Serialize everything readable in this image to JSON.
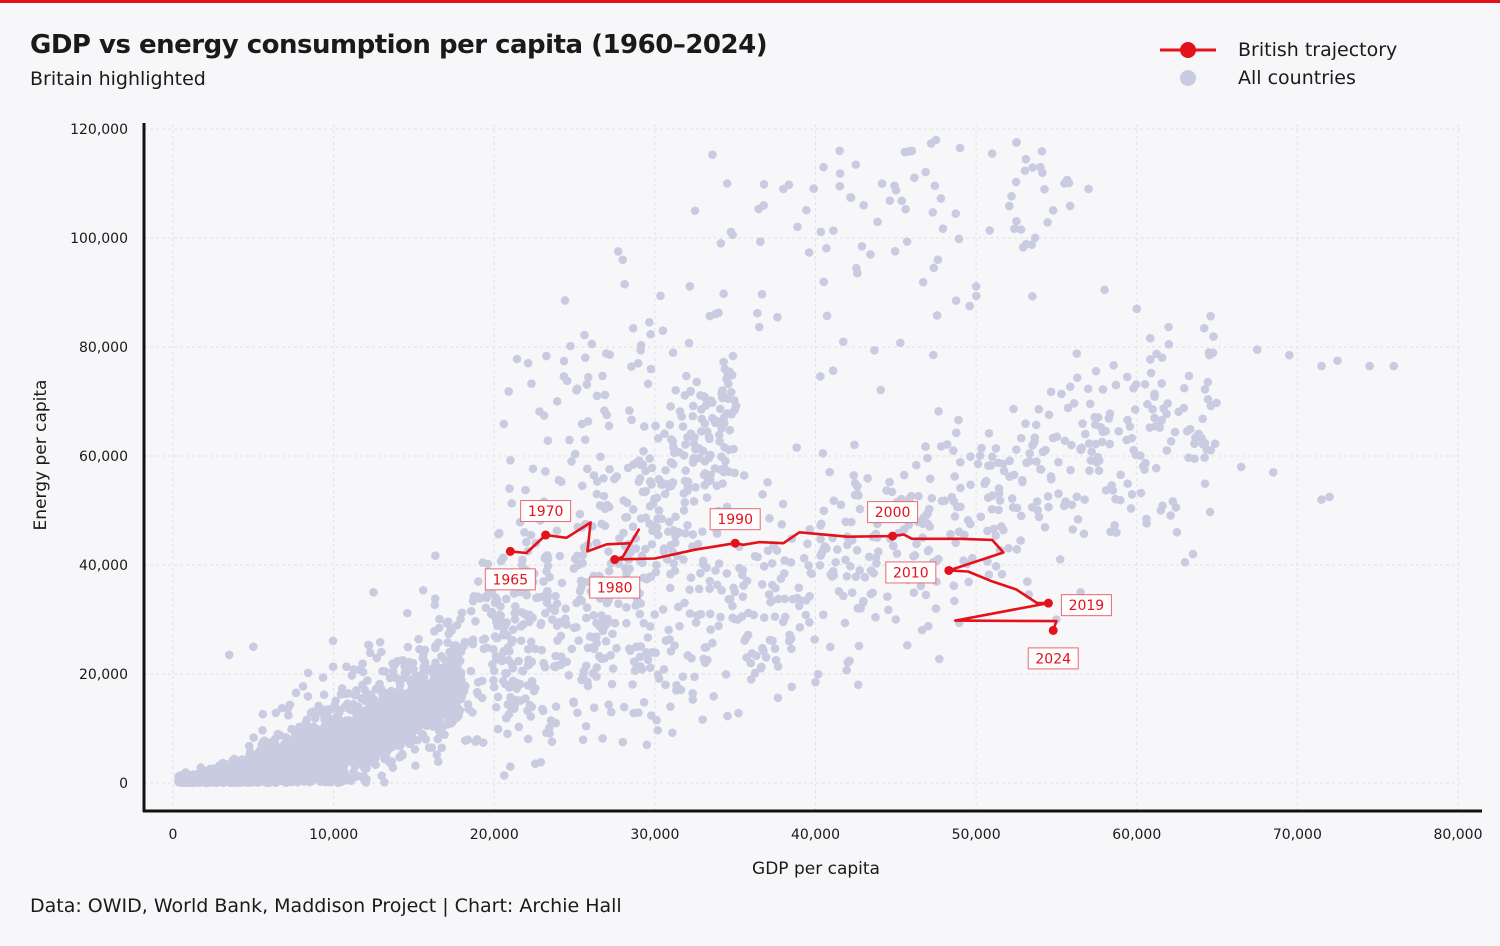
{
  "header": {
    "title": "GDP vs energy consumption per capita (1960–2024)",
    "subtitle": "Britain highlighted"
  },
  "legend": [
    {
      "label": "British trajectory",
      "symbol": "red-line-dot"
    },
    {
      "label": "All countries",
      "symbol": "grey-dot"
    }
  ],
  "footer": "Data: OWID, World Bank, Maddison Project | Chart: Archie Hall",
  "colors": {
    "british": "#e3111a",
    "countries": "#c9cbe0",
    "accent_bar": "#e3111a",
    "axis": "#111111",
    "grid": "#e2e2e8"
  },
  "chart_data": {
    "type": "scatter",
    "title": "GDP vs energy consumption per capita (1960–2024)",
    "subtitle": "Britain highlighted",
    "xlabel": "GDP per capita",
    "ylabel": "Energy per capita",
    "xlim": [
      -2000,
      80000
    ],
    "ylim": [
      -5000,
      122000
    ],
    "xticks": [
      0,
      10000,
      20000,
      30000,
      40000,
      50000,
      60000,
      70000,
      80000
    ],
    "xtick_labels": [
      "0",
      "10,000",
      "20,000",
      "30,000",
      "40,000",
      "50,000",
      "60,000",
      "70,000",
      "80,000"
    ],
    "yticks": [
      0,
      20000,
      40000,
      60000,
      80000,
      100000,
      120000
    ],
    "ytick_labels": [
      "0",
      "20,000",
      "40,000",
      "60,000",
      "80,000",
      "100,000",
      "120,000"
    ],
    "grid": true,
    "legend_position": "top-right",
    "series": [
      {
        "name": "All countries",
        "kind": "scatter",
        "note": "approximate cloud of country-year observations",
        "clusters": [
          {
            "x_range": [
              300,
              18000
            ],
            "y_trend": [
              0.2,
              1.05
            ],
            "count": 1600,
            "spread": 3500
          },
          {
            "x_range": [
              5000,
              35000
            ],
            "y_trend": [
              0.8,
              1.9
            ],
            "count": 700,
            "spread": 9000
          },
          {
            "x_range": [
              20000,
              65000
            ],
            "y_trend": [
              0.9,
              1.05
            ],
            "count": 700,
            "spread": 9000
          },
          {
            "x_range": [
              20000,
              56000
            ],
            "y_trend": [
              2.8,
              2.1
            ],
            "count": 200,
            "spread": 14000
          }
        ],
        "points": [
          [
            28000,
            96000
          ],
          [
            30500,
            83000
          ],
          [
            32500,
            105000
          ],
          [
            34500,
            110000
          ],
          [
            38000,
            109000
          ],
          [
            40500,
            113000
          ],
          [
            41500,
            116000
          ],
          [
            43000,
            106000
          ],
          [
            46000,
            116000
          ],
          [
            47500,
            118000
          ],
          [
            49000,
            116500
          ],
          [
            51000,
            115500
          ],
          [
            52500,
            117500
          ],
          [
            54000,
            113000
          ],
          [
            55500,
            110000
          ],
          [
            57000,
            109000
          ],
          [
            58000,
            90500
          ],
          [
            60000,
            87000
          ],
          [
            62000,
            80500
          ],
          [
            64500,
            79000
          ],
          [
            67500,
            79500
          ],
          [
            69500,
            78500
          ],
          [
            71500,
            76500
          ],
          [
            72500,
            77500
          ],
          [
            74500,
            76500
          ],
          [
            76000,
            76500
          ],
          [
            71500,
            52000
          ],
          [
            72000,
            52500
          ],
          [
            68500,
            57000
          ],
          [
            66500,
            58000
          ],
          [
            63500,
            42000
          ],
          [
            62500,
            46000
          ],
          [
            63000,
            40500
          ],
          [
            5000,
            25000
          ],
          [
            3500,
            23500
          ],
          [
            28000,
            7500
          ],
          [
            29500,
            7000
          ],
          [
            36000,
            19000
          ],
          [
            40000,
            18500
          ],
          [
            45000,
            30000
          ],
          [
            47500,
            32000
          ],
          [
            55000,
            30000
          ],
          [
            56500,
            35000
          ]
        ]
      },
      {
        "name": "British trajectory",
        "kind": "line-with-markers",
        "color": "#e3111a",
        "points": [
          [
            21000,
            42500
          ],
          [
            22000,
            42200
          ],
          [
            23200,
            45500
          ],
          [
            24500,
            45000
          ],
          [
            26000,
            47800
          ],
          [
            25800,
            42500
          ],
          [
            27000,
            43800
          ],
          [
            28500,
            44000
          ],
          [
            29000,
            46500
          ],
          [
            28000,
            41500
          ],
          [
            27500,
            41000
          ],
          [
            30000,
            41200
          ],
          [
            32500,
            42800
          ],
          [
            35000,
            44000
          ],
          [
            35500,
            43700
          ],
          [
            36500,
            44200
          ],
          [
            38000,
            44000
          ],
          [
            39000,
            46000
          ],
          [
            42000,
            45200
          ],
          [
            44800,
            45300
          ],
          [
            45500,
            45600
          ],
          [
            46000,
            44800
          ],
          [
            49000,
            44800
          ],
          [
            51000,
            44600
          ],
          [
            51700,
            42300
          ],
          [
            48300,
            39000
          ],
          [
            49500,
            38800
          ],
          [
            51000,
            37000
          ],
          [
            52500,
            35500
          ],
          [
            53800,
            33000
          ],
          [
            54500,
            33000
          ],
          [
            48700,
            29800
          ],
          [
            55000,
            29700
          ],
          [
            54800,
            28000
          ]
        ],
        "labeled_years": [
          {
            "year": "1965",
            "x": 21000,
            "y": 42500,
            "label_pos": "below"
          },
          {
            "year": "1970",
            "x": 23200,
            "y": 45500,
            "label_pos": "above"
          },
          {
            "year": "1980",
            "x": 27500,
            "y": 41000,
            "label_pos": "below"
          },
          {
            "year": "1990",
            "x": 35000,
            "y": 44000,
            "label_pos": "above"
          },
          {
            "year": "2000",
            "x": 44800,
            "y": 45300,
            "label_pos": "above"
          },
          {
            "year": "2010",
            "x": 48300,
            "y": 39000,
            "label_pos": "left"
          },
          {
            "year": "2019",
            "x": 54500,
            "y": 33000,
            "label_pos": "right"
          },
          {
            "year": "2024",
            "x": 54800,
            "y": 28000,
            "label_pos": "below"
          }
        ]
      }
    ]
  }
}
